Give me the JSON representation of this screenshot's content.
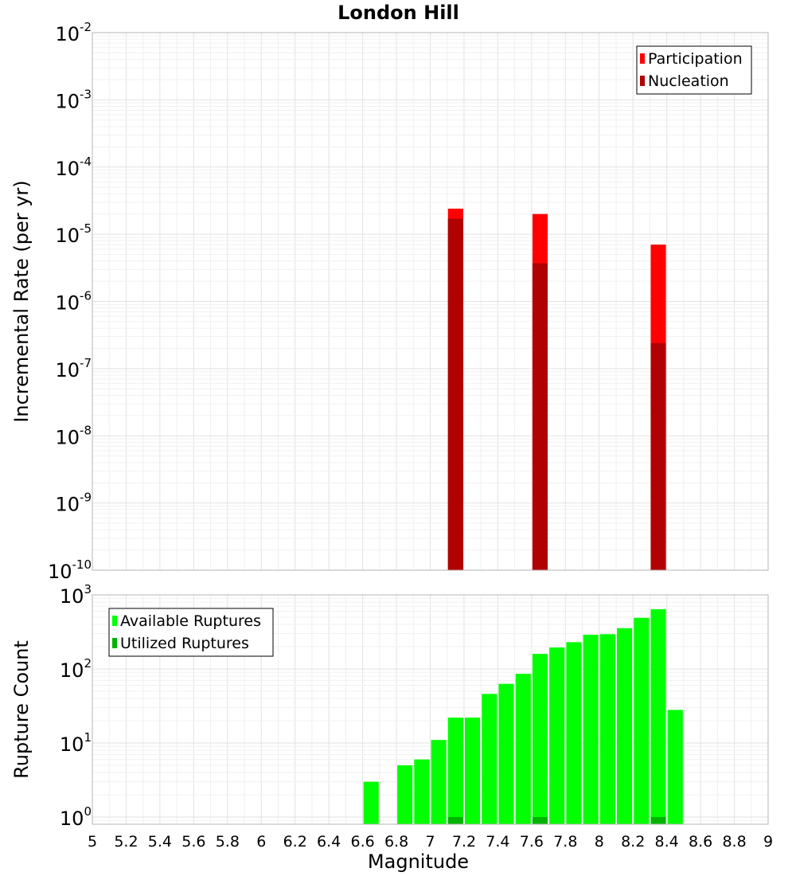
{
  "chart_data": [
    {
      "type": "bar",
      "title": "London Hill",
      "xlabel": "",
      "ylabel": "Incremental Rate (per yr)",
      "y_scale": "log",
      "ylim": [
        1e-10,
        0.01
      ],
      "xlim": [
        5,
        9
      ],
      "x_ticks": [],
      "y_ticks": [
        {
          "base": "10",
          "exp": "-2",
          "value": 0.01
        },
        {
          "base": "10",
          "exp": "-3",
          "value": 0.001
        },
        {
          "base": "10",
          "exp": "-4",
          "value": 0.0001
        },
        {
          "base": "10",
          "exp": "-5",
          "value": 1e-05
        },
        {
          "base": "10",
          "exp": "-6",
          "value": 1e-06
        },
        {
          "base": "10",
          "exp": "-7",
          "value": 1e-07
        },
        {
          "base": "10",
          "exp": "-8",
          "value": 1e-08
        },
        {
          "base": "10",
          "exp": "-9",
          "value": 1e-09
        },
        {
          "base": "10",
          "exp": "-10",
          "value": 1e-10
        }
      ],
      "legend": {
        "position": "top-right"
      },
      "grid": true,
      "bar_width": 0.09,
      "series": [
        {
          "name": "Participation",
          "color": "#ff0000",
          "x": [
            7.15,
            7.65,
            8.35
          ],
          "values": [
            2.4e-05,
            2e-05,
            7e-06
          ]
        },
        {
          "name": "Nucleation",
          "color": "#b00000",
          "x": [
            7.15,
            7.65,
            8.35
          ],
          "values": [
            1.7e-05,
            3.7e-06,
            2.4e-07
          ]
        }
      ]
    },
    {
      "type": "bar",
      "title": "",
      "xlabel": "Magnitude",
      "ylabel": "Rupture Count",
      "y_scale": "log",
      "ylim": [
        0.8,
        1000
      ],
      "xlim": [
        5,
        9
      ],
      "x_ticks": [
        "5",
        "5.2",
        "5.4",
        "5.6",
        "5.8",
        "6",
        "6.2",
        "6.4",
        "6.6",
        "6.8",
        "7",
        "7.2",
        "7.4",
        "7.6",
        "7.8",
        "8",
        "8.2",
        "8.4",
        "8.6",
        "8.8",
        "9"
      ],
      "y_ticks": [
        {
          "base": "10",
          "exp": "0",
          "value": 1
        },
        {
          "base": "10",
          "exp": "1",
          "value": 10
        },
        {
          "base": "10",
          "exp": "2",
          "value": 100
        },
        {
          "base": "10",
          "exp": "3",
          "value": 1000
        }
      ],
      "legend": {
        "position": "top-left"
      },
      "grid": true,
      "bar_width": 0.09,
      "series": [
        {
          "name": "Available Ruptures",
          "color": "#00ff00",
          "x": [
            6.65,
            6.85,
            6.95,
            7.05,
            7.15,
            7.25,
            7.35,
            7.45,
            7.55,
            7.65,
            7.75,
            7.85,
            7.95,
            8.05,
            8.15,
            8.25,
            8.35,
            8.45
          ],
          "values": [
            3,
            5,
            6,
            11,
            22,
            22,
            46,
            63,
            86,
            160,
            195,
            230,
            290,
            295,
            355,
            490,
            640,
            28
          ]
        },
        {
          "name": "Utilized Ruptures",
          "color": "#00b400",
          "x": [
            7.15,
            7.65,
            8.35
          ],
          "values": [
            1,
            1,
            1
          ]
        }
      ]
    }
  ]
}
